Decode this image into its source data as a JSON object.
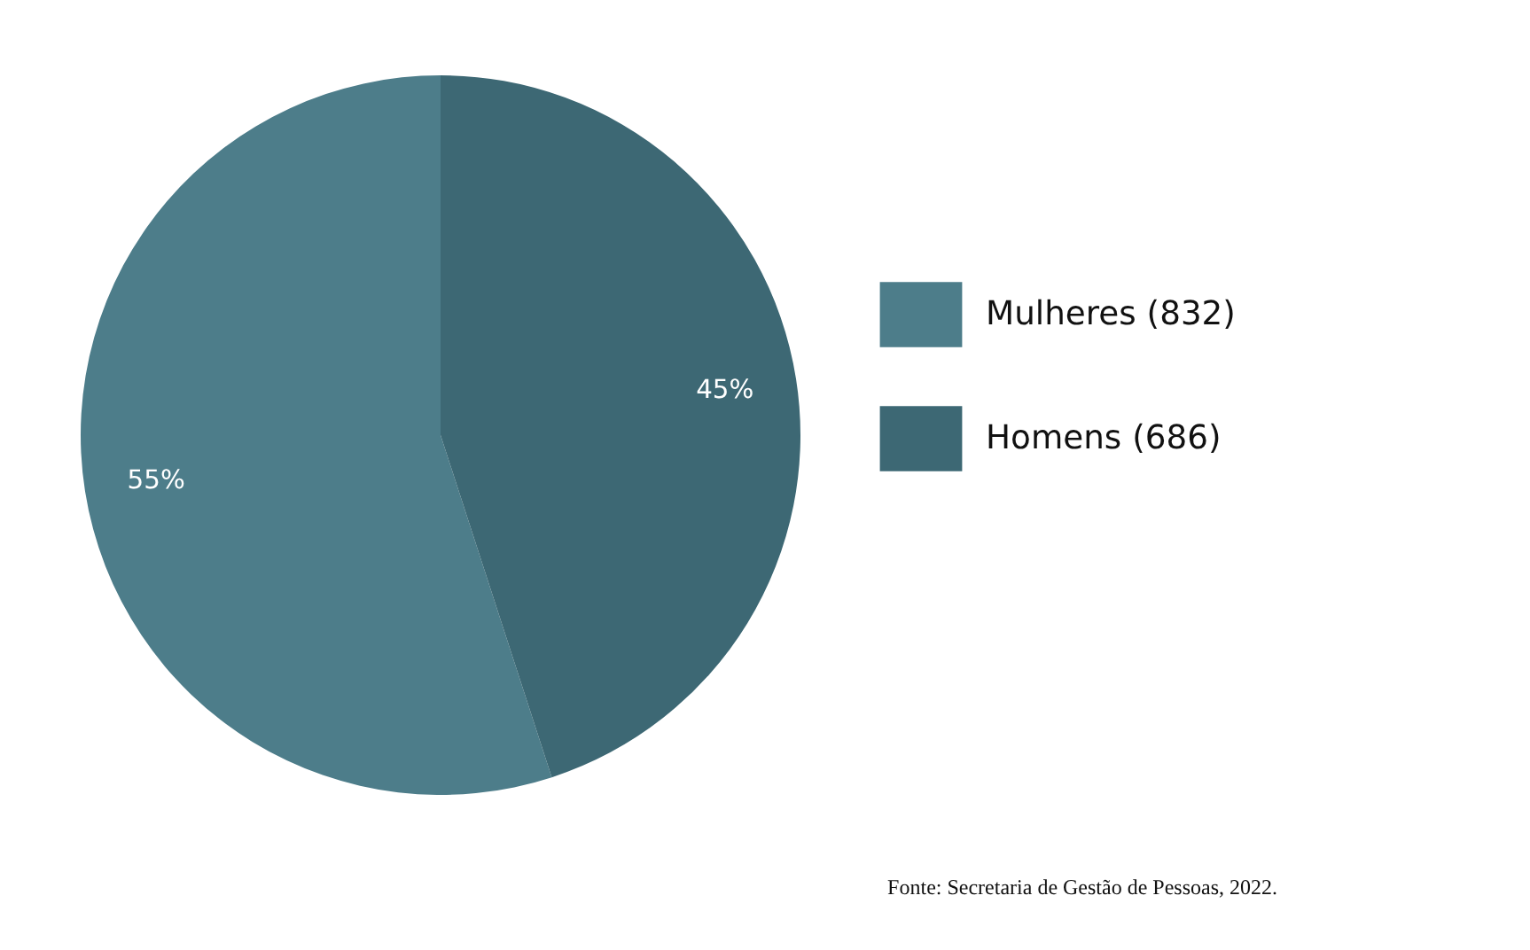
{
  "chart_data": {
    "type": "pie",
    "categories": [
      "Mulheres (832)",
      "Homens (686)"
    ],
    "values": [
      55,
      45
    ],
    "colors": [
      "#4d7d8a",
      "#3d6874"
    ],
    "value_labels": [
      "55%",
      "45%"
    ],
    "legend": "right",
    "annotations": [
      "Fonte: Secretaria de Gestão de Pessoas, 2022."
    ]
  }
}
